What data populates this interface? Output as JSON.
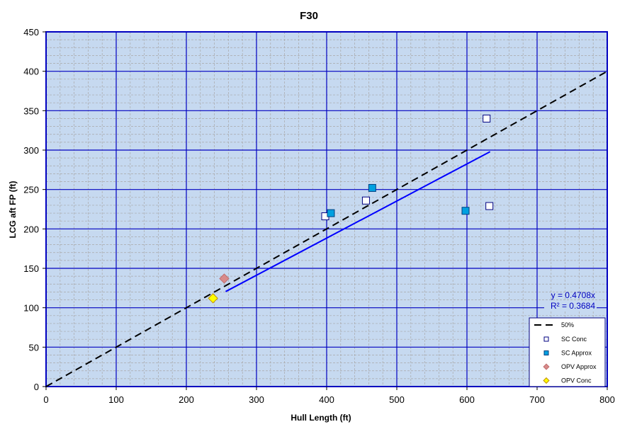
{
  "chart_data": {
    "type": "scatter",
    "title": "F30",
    "xlabel": "Hull Length (ft)",
    "ylabel": "LCG aft FP (ft)",
    "xlim": [
      0,
      800
    ],
    "ylim": [
      0,
      450
    ],
    "xticks": [
      0,
      100,
      200,
      300,
      400,
      500,
      600,
      700,
      800
    ],
    "yticks": [
      0,
      50,
      100,
      150,
      200,
      250,
      300,
      350,
      400,
      450
    ],
    "grid": true,
    "legend_position": "bottom-right",
    "reference_line": {
      "name": "50%",
      "slope": 0.5,
      "x": [
        0,
        800
      ],
      "color": "#000000"
    },
    "trendline": {
      "slope": 0.4708,
      "x": [
        256,
        633
      ],
      "equation": "y = 0.4708x",
      "r2": "R² = 0.3684",
      "color": "#0000ff"
    },
    "series": [
      {
        "name": "SC Conc",
        "marker": "square",
        "fill": "#ffffff",
        "stroke": "#000080",
        "points": [
          [
            398,
            216
          ],
          [
            456,
            236
          ],
          [
            628,
            340
          ],
          [
            632,
            229
          ]
        ]
      },
      {
        "name": "SC Approx",
        "marker": "square",
        "fill": "#00a0e0",
        "stroke": "#004080",
        "points": [
          [
            406,
            220
          ],
          [
            465,
            252
          ],
          [
            598,
            223
          ]
        ]
      },
      {
        "name": "OPV Approx",
        "marker": "diamond",
        "fill": "#d98a8a",
        "stroke": "#c07070",
        "points": [
          [
            254,
            137
          ]
        ]
      },
      {
        "name": "OPV Conc",
        "marker": "diamond",
        "fill": "#ffff00",
        "stroke": "#c09000",
        "points": [
          [
            238,
            112
          ]
        ]
      }
    ],
    "colors": {
      "plot_bg": "#c6d9f0",
      "major_grid": "#0000c0",
      "minor_grid": "#a8a8a8"
    }
  }
}
